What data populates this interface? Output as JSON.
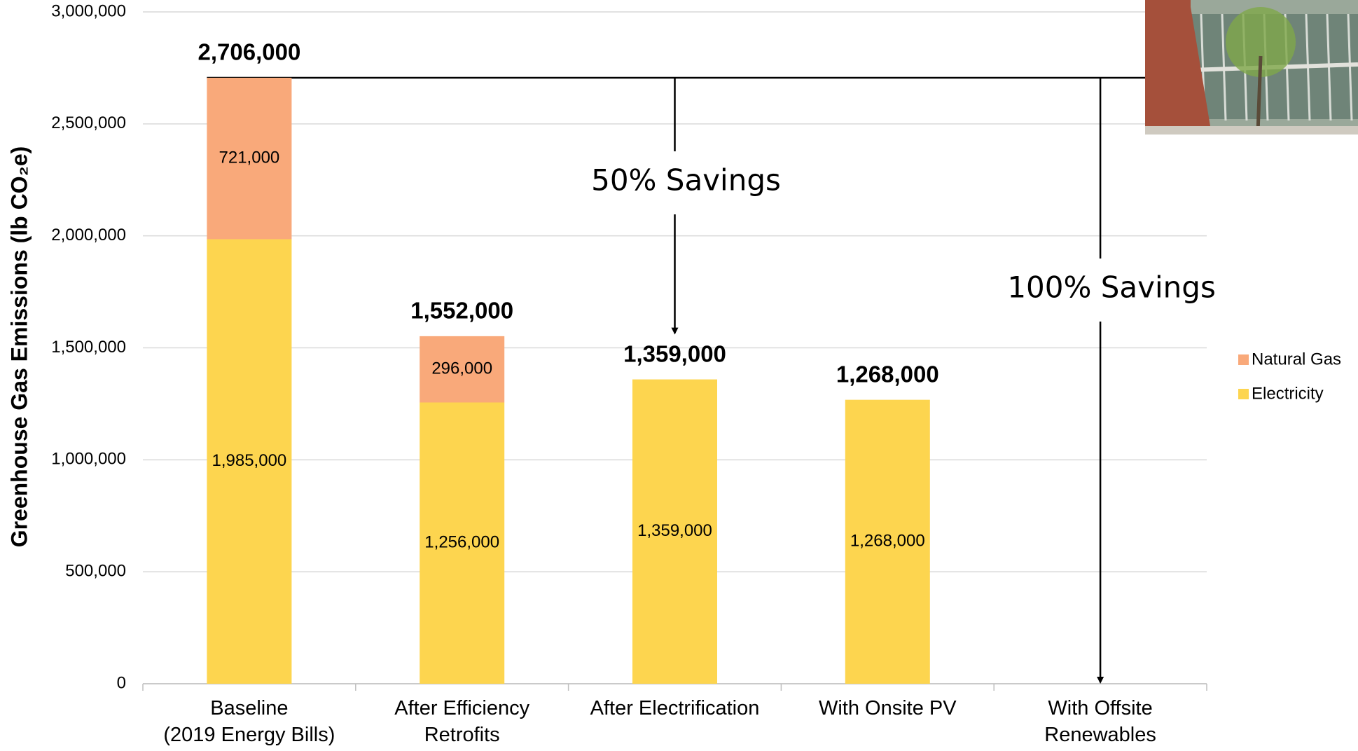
{
  "chart_data": {
    "type": "stacked_bar",
    "y_label": "Greenhouse Gas Emissions (lb CO₂e)",
    "categories": [
      "Baseline\n(2019 Energy Bills)",
      "After Efficiency\nRetrofits",
      "After Electrification",
      "With Onsite PV",
      "With Offsite\nRenewables"
    ],
    "series": [
      {
        "name": "Electricity",
        "color": "#fdd54f",
        "values": [
          1985000,
          1256000,
          1359000,
          1268000,
          null
        ],
        "value_labels": [
          "1,985,000",
          "1,256,000",
          "1,359,000",
          "1,268,000",
          null
        ]
      },
      {
        "name": "Natural Gas",
        "color": "#f9a97a",
        "values": [
          721000,
          296000,
          null,
          null,
          null
        ],
        "value_labels": [
          "721,000",
          "296,000",
          null,
          null,
          null
        ]
      }
    ],
    "totals": {
      "values": [
        2706000,
        1552000,
        1359000,
        1268000,
        null
      ],
      "value_labels": [
        "2,706,000",
        "1,552,000",
        "1,359,000",
        "1,268,000",
        null
      ]
    },
    "annotations": [
      "50% Savings",
      "100% Savings"
    ],
    "ylim": [
      0,
      3000000
    ],
    "yticks": [
      {
        "value": 0,
        "label": "0"
      },
      {
        "value": 500000,
        "label": "500,000"
      },
      {
        "value": 1000000,
        "label": "1,000,000"
      },
      {
        "value": 1500000,
        "label": "1,500,000"
      },
      {
        "value": 2000000,
        "label": "2,000,000"
      },
      {
        "value": 2500000,
        "label": "2,500,000"
      },
      {
        "value": 3000000,
        "label": "3,000,000"
      }
    ],
    "grid": true,
    "legend": "right"
  }
}
